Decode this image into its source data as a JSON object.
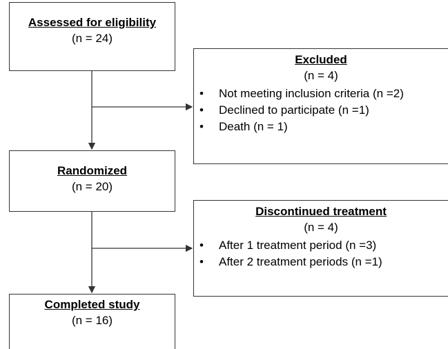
{
  "nodes": [
    {
      "title": "Assessed for eligibility",
      "count": "(n = 24)"
    },
    {
      "title": "Excluded",
      "count": "(n = 4)",
      "items": [
        "Not meeting inclusion criteria (n =2)",
        "Declined to participate (n =1)",
        "Death (n = 1)"
      ]
    },
    {
      "title": "Randomized",
      "count": "(n = 20)"
    },
    {
      "title": "Discontinued treatment",
      "count": "(n = 4)",
      "items": [
        "After 1 treatment period (n =3)",
        "After 2 treatment periods (n =1)"
      ]
    },
    {
      "title": "Completed study",
      "count": "(n = 16)"
    }
  ]
}
